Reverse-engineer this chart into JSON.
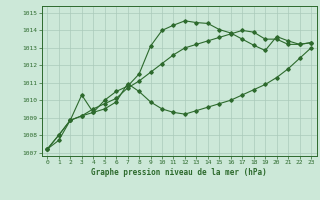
{
  "title": "Graphe pression niveau de la mer (hPa)",
  "bg_color": "#cce8d8",
  "grid_color": "#aacaba",
  "line_color": "#2d6a2d",
  "xlim": [
    -0.5,
    23.5
  ],
  "ylim": [
    1006.8,
    1015.4
  ],
  "yticks": [
    1007,
    1008,
    1009,
    1010,
    1011,
    1012,
    1013,
    1014,
    1015
  ],
  "xticks": [
    0,
    1,
    2,
    3,
    4,
    5,
    6,
    7,
    8,
    9,
    10,
    11,
    12,
    13,
    14,
    15,
    16,
    17,
    18,
    19,
    20,
    21,
    22,
    23
  ],
  "series1_x": [
    0,
    1,
    2,
    3,
    4,
    5,
    6,
    7,
    8,
    9,
    10,
    11,
    12,
    13,
    14,
    15,
    16,
    17,
    18,
    19,
    20,
    21,
    22,
    23
  ],
  "series1_y": [
    1007.2,
    1008.0,
    1008.85,
    1009.1,
    1009.3,
    1010.0,
    1010.5,
    1010.8,
    1011.5,
    1013.1,
    1014.0,
    1014.3,
    1014.55,
    1014.45,
    1014.4,
    1014.05,
    1013.85,
    1013.5,
    1013.15,
    1012.85,
    1013.65,
    1013.4,
    1013.2,
    1013.3
  ],
  "series2_x": [
    0,
    1,
    2,
    3,
    4,
    5,
    6,
    7,
    8,
    9,
    10,
    11,
    12,
    13,
    14,
    15,
    16,
    17,
    18,
    19,
    20,
    21,
    22,
    23
  ],
  "series2_y": [
    1007.2,
    1007.7,
    1008.85,
    1010.3,
    1009.3,
    1009.5,
    1009.9,
    1010.95,
    1010.5,
    1009.9,
    1009.5,
    1009.3,
    1009.2,
    1009.4,
    1009.6,
    1009.8,
    1010.0,
    1010.3,
    1010.6,
    1010.9,
    1011.3,
    1011.8,
    1012.4,
    1013.0
  ],
  "series3_x": [
    0,
    1,
    2,
    3,
    4,
    5,
    6,
    7,
    8,
    9,
    10,
    11,
    12,
    13,
    14,
    15,
    16,
    17,
    18,
    19,
    20,
    21,
    22,
    23
  ],
  "series3_y": [
    1007.2,
    1008.0,
    1008.85,
    1009.1,
    1009.5,
    1009.8,
    1010.1,
    1010.7,
    1011.1,
    1011.6,
    1012.1,
    1012.6,
    1013.0,
    1013.2,
    1013.4,
    1013.6,
    1013.8,
    1014.0,
    1013.9,
    1013.5,
    1013.5,
    1013.2,
    1013.2,
    1013.3
  ]
}
